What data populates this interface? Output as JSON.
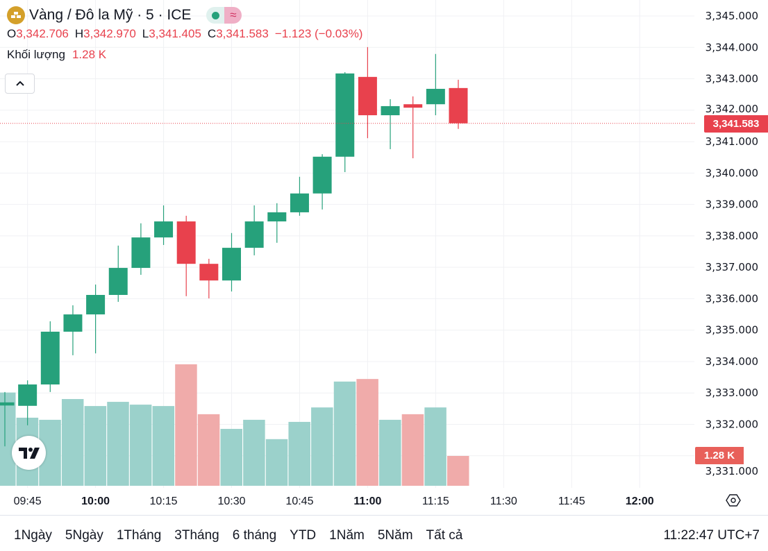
{
  "header": {
    "symbol_title": "Vàng / Đô la Mỹ · 5 · ICE",
    "status_icon": "market-open-dot",
    "delay_icon": "≈",
    "ohlc": {
      "o_label": "O",
      "o_value": "3,342.706",
      "h_label": "H",
      "h_value": "3,342.970",
      "l_label": "L",
      "l_value": "3,341.405",
      "c_label": "C",
      "c_value": "3,341.583",
      "change": "−1.123 (−0.03%)"
    },
    "volume_label": "Khối lượng",
    "volume_value": "1.28 K",
    "collapse_icon": "^"
  },
  "chart_data": {
    "type": "candlestick",
    "interval": "5",
    "x": [
      "09:40",
      "09:45",
      "09:50",
      "09:55",
      "10:00",
      "10:05",
      "10:10",
      "10:15",
      "10:20",
      "10:25",
      "10:30",
      "10:35",
      "10:40",
      "10:45",
      "10:50",
      "10:55",
      "11:00",
      "11:05",
      "11:10",
      "11:15",
      "11:20"
    ],
    "open": [
      3332.6,
      3332.59,
      3333.27,
      3334.95,
      3335.5,
      3336.12,
      3336.98,
      3337.95,
      3338.46,
      3337.11,
      3336.58,
      3337.62,
      3338.46,
      3338.75,
      3339.35,
      3340.52,
      3343.06,
      3341.84,
      3342.19,
      3342.19,
      3342.706
    ],
    "high": [
      3333.03,
      3333.4,
      3335.28,
      3335.79,
      3336.45,
      3337.69,
      3338.4,
      3338.97,
      3338.64,
      3337.27,
      3338.09,
      3338.97,
      3339.04,
      3339.88,
      3340.6,
      3343.21,
      3344.01,
      3342.35,
      3342.44,
      3343.79,
      3342.97
    ],
    "low": [
      3331.3,
      3331.97,
      3333.03,
      3334.2,
      3334.26,
      3335.9,
      3336.76,
      3337.71,
      3336.08,
      3336.01,
      3336.23,
      3337.38,
      3337.78,
      3338.64,
      3338.84,
      3340.03,
      3341.11,
      3340.76,
      3340.47,
      3341.84,
      3341.405
    ],
    "close": [
      3332.7,
      3333.27,
      3334.95,
      3335.5,
      3336.12,
      3336.98,
      3337.95,
      3338.46,
      3337.11,
      3336.58,
      3337.62,
      3338.46,
      3338.75,
      3339.35,
      3340.52,
      3343.17,
      3341.84,
      3342.13,
      3342.08,
      3342.68,
      3341.583
    ],
    "volume_k": [
      4.0,
      2.92,
      2.83,
      3.72,
      3.42,
      3.6,
      3.48,
      3.42,
      5.21,
      3.07,
      2.44,
      2.83,
      2.0,
      2.74,
      3.36,
      4.47,
      4.58,
      2.83,
      3.07,
      3.36,
      1.28
    ],
    "ylim": [
      3330.8,
      3345.5
    ],
    "y_ticks": [
      "3,345.000",
      "3,344.000",
      "3,343.000",
      "3,342.000",
      "3,341.000",
      "3,340.000",
      "3,339.000",
      "3,338.000",
      "3,337.000",
      "3,336.000",
      "3,335.000",
      "3,334.000",
      "3,333.000",
      "3,332.000",
      "3,331.000"
    ],
    "y_tick_values": [
      3345,
      3344,
      3343,
      3342,
      3341,
      3340,
      3339,
      3338,
      3337,
      3336,
      3335,
      3334,
      3333,
      3332,
      3331
    ],
    "x_ticks": [
      {
        "label": "09:45",
        "index": 1,
        "bold": false
      },
      {
        "label": "10:00",
        "index": 4,
        "bold": true
      },
      {
        "label": "10:15",
        "index": 7,
        "bold": false
      },
      {
        "label": "10:30",
        "index": 10,
        "bold": false
      },
      {
        "label": "10:45",
        "index": 13,
        "bold": false
      },
      {
        "label": "11:00",
        "index": 16,
        "bold": true
      },
      {
        "label": "11:15",
        "index": 19,
        "bold": false
      },
      {
        "label": "11:30",
        "index": 22,
        "bold": false
      },
      {
        "label": "11:45",
        "index": 25,
        "bold": false
      },
      {
        "label": "12:00",
        "index": 28,
        "bold": true
      }
    ],
    "last_price": 3341.583,
    "last_price_label": "3,341.583",
    "last_volume_label": "1.28 K",
    "grid": true
  },
  "colors": {
    "up": "#26a17b",
    "down": "#e8414d",
    "up_volume": "#9bd1cb",
    "down_volume": "#f0abaa",
    "grid": "#f0f1f4"
  },
  "watermark": "TV",
  "settings_icon": "hexagon-settings-icon",
  "bottom": {
    "ranges": [
      "1Ngày",
      "5Ngày",
      "1Tháng",
      "3Tháng",
      "6 tháng",
      "YTD",
      "1Năm",
      "5Năm",
      "Tất cả"
    ],
    "clock": "11:22:47 UTC+7"
  }
}
